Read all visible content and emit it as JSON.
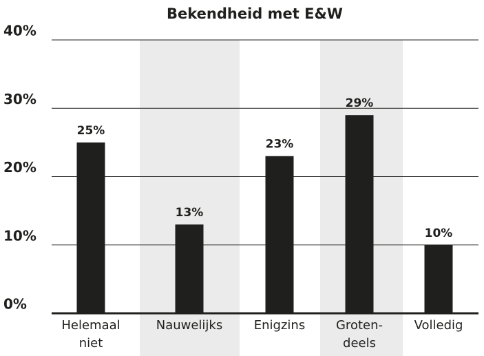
{
  "chart_data": {
    "type": "bar",
    "title": "Bekendheid met E&W",
    "categories": [
      [
        "Helemaal",
        "niet"
      ],
      [
        "Nauwelijks"
      ],
      [
        "Enigzins"
      ],
      [
        "Groten-",
        "deels"
      ],
      [
        "Volledig"
      ]
    ],
    "values": [
      25,
      13,
      23,
      29,
      10
    ],
    "value_labels": [
      "25%",
      "13%",
      "23%",
      "29%",
      "10%"
    ],
    "color": "#1f1f1d",
    "ylim": [
      0,
      40
    ],
    "yticks": [
      {
        "value": 0,
        "label": "0%"
      },
      {
        "value": 10,
        "label": "10%"
      },
      {
        "value": 20,
        "label": "20%"
      },
      {
        "value": 30,
        "label": "30%"
      },
      {
        "value": 40,
        "label": "40%"
      }
    ],
    "grid": true
  }
}
